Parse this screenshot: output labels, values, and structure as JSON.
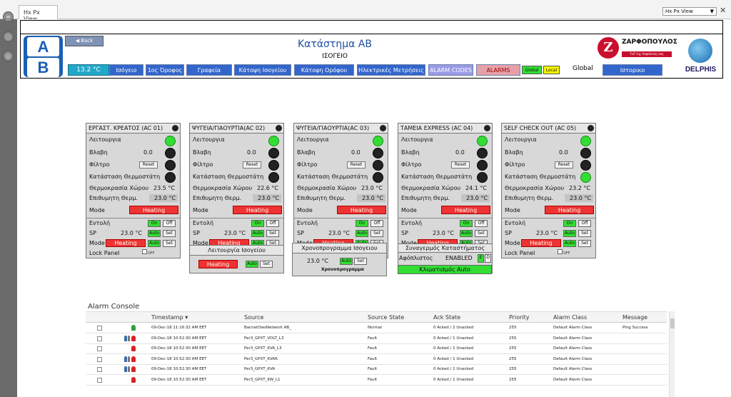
{
  "window": {
    "tab_title": "Hx Px View",
    "view_select": "Hx Px View",
    "close_glyph": "✕"
  },
  "header": {
    "title": "Κατάστημα ΑΒ",
    "subtitle": "ΙΣΟΓΕΙΟ",
    "ab_logo_top": "A",
    "ab_logo_bottom": "B",
    "back_label": "Back",
    "zar_letter": "Z",
    "zar_name": "ΖΑΡΦΟΠΟΥΛΟΣ",
    "zar_tag": "ΤεΖ της Ασφάλειάς σας",
    "delphis": "DELPHIS"
  },
  "nav": {
    "temperature": "13.2 °C",
    "items": [
      "Ισόγειο",
      "1ος Όροφος",
      "Γραφεία",
      "Κάτοψη Ισογείου",
      "Κάτοψη Ορόφου",
      "Ηλεκτρικές Μετρήσεις",
      "ALARM CODES",
      "ALARMS"
    ],
    "global_btn": "Global",
    "local_btn": "Local",
    "global_label": "Global",
    "history": "Ιστορικο"
  },
  "labels": {
    "operation": "Λειτουργια",
    "fault": "Βλαβη",
    "filter": "Φίλτρο",
    "reset": "Reset",
    "thermostat": "Κατάσταση Θερμοστάτη",
    "room_temp": "Θερμοκρασία Χώρου",
    "setpoint": "Επιθυμητη Θερμ.",
    "mode": "Mode",
    "command": "Εντολή",
    "sp": "SP",
    "lock": "Lock Panel",
    "on": "On",
    "off": "Off",
    "auto": "Auto",
    "set": "Set",
    "off_small": "OFF"
  },
  "units": [
    {
      "title": "ΕΡΓΑΣΤ. ΚΡΕΑΤΟΣ (AC 01)",
      "fault": "0.0",
      "room": "23.5 °C",
      "setpoint": "23.0 °C",
      "mode": "Heating",
      "sp": "23.0 °C",
      "mode2": "Heating",
      "op_on": true,
      "th_on": false
    },
    {
      "title": "ΨΥΓΕΙΑ/ΓΙΑΟΥΡΤΙΑ(AC 02)",
      "fault": "0.0",
      "room": "22.6 °C",
      "setpoint": "23.0 °C",
      "mode": "Heating",
      "sp": "23.0 °C",
      "mode2": "Heating",
      "op_on": true,
      "th_on": false
    },
    {
      "title": "ΨΥΓΕΙΑ/ΓΙΑΟΥΡΤΙΑ(AC 03)",
      "fault": "0.0",
      "room": "23.0 °C",
      "setpoint": "23.0 °C",
      "mode": "Heating",
      "sp": "23.0 °C",
      "mode2": "Heating",
      "op_on": true,
      "th_on": false
    },
    {
      "title": "ΤΑΜΕΙΑ EXPRESS (AC 04)",
      "fault": "0.0",
      "room": "24.1 °C",
      "setpoint": "23.0 °C",
      "mode": "Heating",
      "sp": "23.0 °C",
      "mode2": "Heating",
      "op_on": true,
      "th_on": false
    },
    {
      "title": "SELF CHECK OUT (AC 05)",
      "fault": "0.0",
      "room": "23.2 °C",
      "setpoint": "23.0 °C",
      "mode": "Heating",
      "sp": "23.0 °C",
      "mode2": "Heating",
      "op_on": true,
      "th_on": true
    }
  ],
  "panels": {
    "ground_op": {
      "title": "Λειτουργία Ισογείου",
      "mode": "Heating",
      "auto": "Auto",
      "set": "Set"
    },
    "schedule": {
      "title": "Χρονοπρογραμμα Ισογειου",
      "temp": "23.0 °C",
      "auto": "Auto",
      "set": "Set",
      "caption": "Χρονοπρογραμμα"
    },
    "alarm": {
      "title": "Συναγερμός Καταστήματος",
      "label": "Αφόπλιστος",
      "status": "ENABLED",
      "e": "E",
      "d": "D",
      "climate_btn": "Κλιματισμός Auto"
    }
  },
  "alarm_console": {
    "title": "Alarm Console",
    "columns": [
      "Timestamp ▾",
      "Source",
      "Source State",
      "Ack State",
      "Priority",
      "Alarm Class",
      "Message"
    ],
    "rows": [
      {
        "timestamp": "09-Dec-18 11:16:32 AM EET",
        "source": "BacnetOwsNetwork AB_",
        "state": "Normal",
        "ack": "0 Acked / 2 Unacked",
        "priority": "255",
        "class": "Default Alarm Class",
        "message": "Ping Success",
        "icons": "green"
      },
      {
        "timestamp": "09-Dec-18 10:52:30 AM EET",
        "source": "Per3_GPXT_VOLT_L3",
        "state": "Fault",
        "ack": "0 Acked / 1 Unacked",
        "priority": "255",
        "class": "Default Alarm Class",
        "message": "",
        "icons": "mixed"
      },
      {
        "timestamp": "09-Dec-18 10:52:30 AM EET",
        "source": "Per3_GPXT_KVA_L3",
        "state": "Fault",
        "ack": "0 Acked / 1 Unacked",
        "priority": "255",
        "class": "Default Alarm Class",
        "message": "",
        "icons": "red"
      },
      {
        "timestamp": "09-Dec-18 10:52:30 AM EET",
        "source": "Per3_GPXT_KVAR",
        "state": "Fault",
        "ack": "0 Acked / 1 Unacked",
        "priority": "255",
        "class": "Default Alarm Class",
        "message": "",
        "icons": "mixed"
      },
      {
        "timestamp": "09-Dec-18 10:52:30 AM EET",
        "source": "Per3_GPXT_KVA",
        "state": "Fault",
        "ack": "0 Acked / 1 Unacked",
        "priority": "255",
        "class": "Default Alarm Class",
        "message": "",
        "icons": "mixed"
      },
      {
        "timestamp": "09-Dec-18 10:52:30 AM EET",
        "source": "Per3_GPXT_KW_L1",
        "state": "Fault",
        "ack": "0 Acked / 1 Unacked",
        "priority": "255",
        "class": "Default Alarm Class",
        "message": "",
        "icons": "red"
      }
    ]
  },
  "colors": {
    "accent_blue": "#3366cc",
    "heating_red": "#ee3333",
    "led_green": "#33dd33"
  }
}
